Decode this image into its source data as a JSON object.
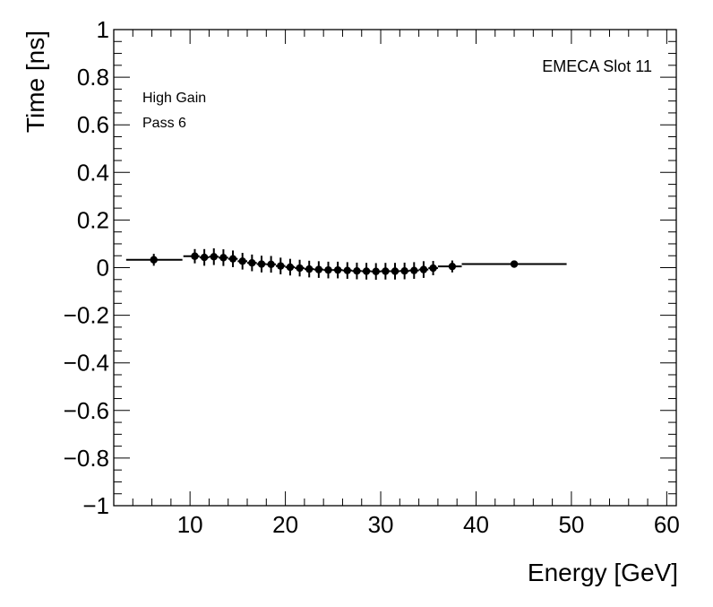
{
  "chart_data": {
    "type": "scatter",
    "title": "",
    "xlabel": "Energy [GeV]",
    "ylabel": "Time [ns]",
    "xlim": [
      2,
      61
    ],
    "ylim": [
      -1,
      1
    ],
    "x_ticks": [
      10,
      20,
      30,
      40,
      50,
      60
    ],
    "x_tick_labels": [
      "10",
      "20",
      "30",
      "40",
      "50",
      "60"
    ],
    "y_ticks": [
      -1,
      -0.8,
      -0.6,
      -0.4,
      -0.2,
      0,
      0.2,
      0.4,
      0.6,
      0.8,
      1
    ],
    "y_tick_labels": [
      "−1",
      "−0.8",
      "−0.6",
      "−0.4",
      "−0.2",
      "0",
      "0.2",
      "0.4",
      "0.6",
      "0.8",
      "1"
    ],
    "grid": false,
    "annotations": {
      "slot": "EMECA Slot 11",
      "gain": "High Gain",
      "pass": "Pass 6"
    },
    "points": [
      {
        "x": 6.2,
        "y": 0.033,
        "err": 0.025,
        "xlo": 3.3,
        "xhi": 9.2
      },
      {
        "x": 10.5,
        "y": 0.048,
        "err": 0.03,
        "xlo": 9.3,
        "xhi": 11.0
      },
      {
        "x": 11.5,
        "y": 0.043,
        "err": 0.035,
        "xlo": 11.0,
        "xhi": 12.0
      },
      {
        "x": 12.5,
        "y": 0.046,
        "err": 0.035,
        "xlo": 12.0,
        "xhi": 13.0
      },
      {
        "x": 13.5,
        "y": 0.042,
        "err": 0.035,
        "xlo": 13.0,
        "xhi": 14.0
      },
      {
        "x": 14.5,
        "y": 0.037,
        "err": 0.035,
        "xlo": 14.0,
        "xhi": 15.0
      },
      {
        "x": 15.5,
        "y": 0.027,
        "err": 0.035,
        "xlo": 15.0,
        "xhi": 16.0
      },
      {
        "x": 16.5,
        "y": 0.02,
        "err": 0.035,
        "xlo": 16.0,
        "xhi": 17.0
      },
      {
        "x": 17.5,
        "y": 0.015,
        "err": 0.035,
        "xlo": 17.0,
        "xhi": 18.0
      },
      {
        "x": 18.5,
        "y": 0.014,
        "err": 0.035,
        "xlo": 18.0,
        "xhi": 19.0
      },
      {
        "x": 19.5,
        "y": 0.007,
        "err": 0.035,
        "xlo": 19.0,
        "xhi": 20.0
      },
      {
        "x": 20.5,
        "y": 0.002,
        "err": 0.035,
        "xlo": 20.0,
        "xhi": 21.0
      },
      {
        "x": 21.5,
        "y": -0.002,
        "err": 0.035,
        "xlo": 21.0,
        "xhi": 22.0
      },
      {
        "x": 22.5,
        "y": -0.006,
        "err": 0.035,
        "xlo": 22.0,
        "xhi": 23.0
      },
      {
        "x": 23.5,
        "y": -0.008,
        "err": 0.035,
        "xlo": 23.0,
        "xhi": 24.0
      },
      {
        "x": 24.5,
        "y": -0.01,
        "err": 0.035,
        "xlo": 24.0,
        "xhi": 25.0
      },
      {
        "x": 25.5,
        "y": -0.01,
        "err": 0.035,
        "xlo": 25.0,
        "xhi": 26.0
      },
      {
        "x": 26.5,
        "y": -0.012,
        "err": 0.035,
        "xlo": 26.0,
        "xhi": 27.0
      },
      {
        "x": 27.5,
        "y": -0.014,
        "err": 0.035,
        "xlo": 27.0,
        "xhi": 28.0
      },
      {
        "x": 28.5,
        "y": -0.015,
        "err": 0.035,
        "xlo": 28.0,
        "xhi": 29.0
      },
      {
        "x": 29.5,
        "y": -0.016,
        "err": 0.035,
        "xlo": 29.0,
        "xhi": 30.0
      },
      {
        "x": 30.5,
        "y": -0.015,
        "err": 0.035,
        "xlo": 30.0,
        "xhi": 31.0
      },
      {
        "x": 31.5,
        "y": -0.015,
        "err": 0.035,
        "xlo": 31.0,
        "xhi": 32.0
      },
      {
        "x": 32.5,
        "y": -0.014,
        "err": 0.035,
        "xlo": 32.0,
        "xhi": 33.0
      },
      {
        "x": 33.5,
        "y": -0.012,
        "err": 0.035,
        "xlo": 33.0,
        "xhi": 34.0
      },
      {
        "x": 34.5,
        "y": -0.008,
        "err": 0.035,
        "xlo": 34.0,
        "xhi": 35.0
      },
      {
        "x": 35.5,
        "y": -0.002,
        "err": 0.03,
        "xlo": 35.0,
        "xhi": 36.0
      },
      {
        "x": 37.5,
        "y": 0.005,
        "err": 0.025,
        "xlo": 36.0,
        "xhi": 38.5
      },
      {
        "x": 44.0,
        "y": 0.015,
        "err": 0.01,
        "xlo": 38.5,
        "xhi": 49.5
      }
    ]
  }
}
